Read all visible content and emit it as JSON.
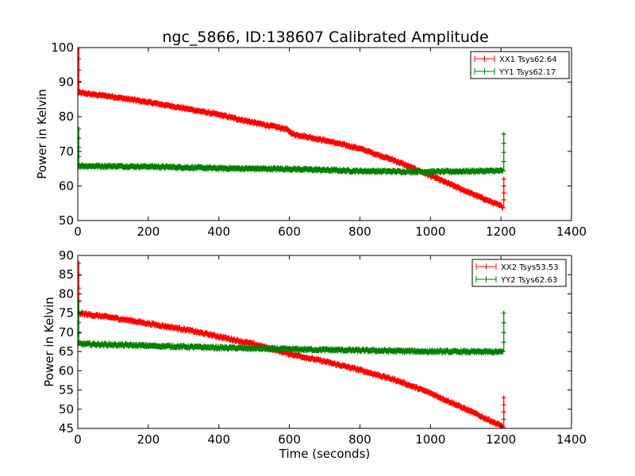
{
  "chart_data": [
    {
      "type": "line",
      "title": "ngc_5866, ID:138607 Calibrated Amplitude",
      "xlabel": "",
      "ylabel": "Power in Kelvin",
      "xlim": [
        0,
        1400
      ],
      "ylim": [
        50,
        100
      ],
      "xticks": [
        0,
        200,
        400,
        600,
        800,
        1000,
        1200,
        1400
      ],
      "yticks": [
        50,
        60,
        70,
        80,
        90,
        100
      ],
      "legend": "top-right",
      "grid": false,
      "series": [
        {
          "name": "XX1 Tsys62.64",
          "color": "#ff0000",
          "x": [
            0,
            100,
            200,
            300,
            400,
            500,
            590,
            610,
            700,
            800,
            900,
            1000,
            1100,
            1205
          ],
          "y": [
            87,
            85.8,
            84.2,
            82.5,
            80.6,
            78.3,
            76.5,
            75,
            73.2,
            70.8,
            67.3,
            63,
            58.5,
            54
          ],
          "spikes": [
            {
              "x": 3,
              "y": 100
            },
            {
              "x": 1208,
              "y": 62
            }
          ]
        },
        {
          "name": "YY1 Tsys62.17",
          "color": "#008000",
          "x": [
            0,
            200,
            400,
            600,
            800,
            1000,
            1205
          ],
          "y": [
            65.8,
            65.6,
            65.1,
            64.9,
            64.3,
            64.1,
            64.4
          ],
          "spikes": [
            {
              "x": 3,
              "y": 76.5
            },
            {
              "x": 1208,
              "y": 75
            }
          ]
        }
      ]
    },
    {
      "type": "line",
      "title": "",
      "xlabel": "Time (seconds)",
      "ylabel": "Power in Kelvin",
      "xlim": [
        0,
        1400
      ],
      "ylim": [
        45,
        90
      ],
      "xticks": [
        0,
        200,
        400,
        600,
        800,
        1000,
        1200,
        1400
      ],
      "yticks": [
        45,
        50,
        55,
        60,
        65,
        70,
        75,
        80,
        85,
        90
      ],
      "legend": "top-right",
      "grid": false,
      "series": [
        {
          "name": "XX2 Tsys53.53",
          "color": "#ff0000",
          "x": [
            0,
            100,
            200,
            300,
            400,
            500,
            600,
            700,
            800,
            900,
            1000,
            1100,
            1205
          ],
          "y": [
            75,
            73.8,
            72.3,
            70.8,
            68.9,
            66.9,
            64.4,
            62.4,
            60.2,
            57.6,
            54.2,
            50,
            45.5
          ],
          "spikes": [
            {
              "x": 3,
              "y": 88
            },
            {
              "x": 1208,
              "y": 53
            }
          ]
        },
        {
          "name": "YY2 Tsys62.63",
          "color": "#008000",
          "x": [
            0,
            200,
            400,
            600,
            800,
            1000,
            1205
          ],
          "y": [
            67,
            66.5,
            66,
            65.6,
            65.3,
            65,
            64.9
          ],
          "spikes": [
            {
              "x": 3,
              "y": 78
            },
            {
              "x": 1208,
              "y": 75
            }
          ]
        }
      ]
    }
  ]
}
